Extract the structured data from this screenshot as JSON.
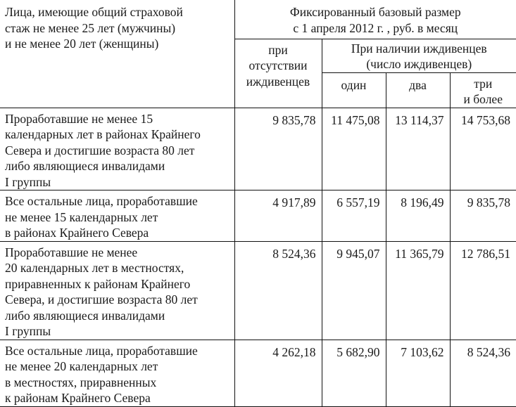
{
  "header": {
    "stub": "Лица, имеющие общий страховой\nстаж не менее 25 лет (мужчины)\nи не менее 20 лет (женщины)",
    "group": "Фиксированный базовый размер\nс 1 апреля 2012 г. , руб. в месяц",
    "no_dependents": "при\nотсутствии\nиждивенцев",
    "with_dependents": "При наличии иждивенцев\n(число иждивенцев)",
    "one": "один",
    "two": "два",
    "three_plus": "три\nи более"
  },
  "rows": [
    {
      "label": "Проработавшие не менее 15\nкалендарных лет в районах Крайнего\nСевера и достигшие возраста 80 лет\nлибо являющиеся инвалидами\nI группы",
      "values": [
        "9 835,78",
        "11 475,08",
        "13 114,37",
        "14 753,68"
      ]
    },
    {
      "label": "Все остальные лица, проработавшие\nне менее 15 календарных лет\nв районах Крайнего Севера",
      "values": [
        "4 917,89",
        "6 557,19",
        "8 196,49",
        "9 835,78"
      ]
    },
    {
      "label": "Проработавшие не менее\n20 календарных лет в местностях,\nприравненных к районам Крайнего\nСевера, и достигшие возраста 80 лет\nлибо являющиеся инвалидами\nI группы",
      "values": [
        "8 524,36",
        "9 945,07",
        "11 365,79",
        "12 786,51"
      ]
    },
    {
      "label": "Все остальные лица, проработавшие\nне менее 20 календарных лет\nв местностях, приравненных\nк районам Крайнего Севера",
      "values": [
        "4 262,18",
        "5 682,90",
        "7 103,62",
        "8 524,36"
      ]
    }
  ]
}
